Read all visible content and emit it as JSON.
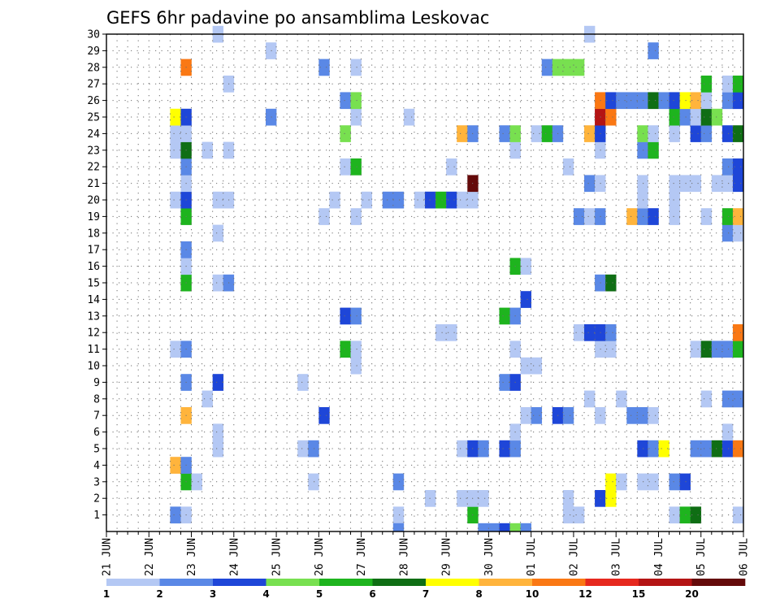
{
  "chart_data": {
    "type": "heatmap",
    "title": "GEFS 6hr padavine po ansamblima Leskovac",
    "xlabel": "",
    "ylabel": "",
    "x_ticks": [
      "21 JUN",
      "22 JUN",
      "23 JUN",
      "24 JUN",
      "25 JUN",
      "26 JUN",
      "27 JUN",
      "28 JUN",
      "29 JUN",
      "30 JUN",
      "01 JUL",
      "02 JUL",
      "03 JUL",
      "04 JUL",
      "05 JUL",
      "06 JUL"
    ],
    "y_ticks": [
      1,
      2,
      3,
      4,
      5,
      6,
      7,
      8,
      9,
      10,
      11,
      12,
      13,
      14,
      15,
      16,
      17,
      18,
      19,
      20,
      21,
      22,
      23,
      24,
      25,
      26,
      27,
      28,
      29,
      30
    ],
    "ylim": [
      0,
      30
    ],
    "x_unit": "6-hour steps from 21 JUN 00 UTC",
    "steps_shown": 60,
    "grid": true,
    "legend_position": "bottom",
    "legend": {
      "labels": [
        "1",
        "2",
        "3",
        "4",
        "5",
        "6",
        "7",
        "8",
        "10",
        "12",
        "15",
        "20"
      ],
      "colors": [
        "#b4c8f4",
        "#5a88e6",
        "#1e46d8",
        "#78e050",
        "#1eb41e",
        "#0f6e14",
        "#ffff00",
        "#ffb43c",
        "#fa7814",
        "#e6281e",
        "#b41414",
        "#640a0a"
      ]
    },
    "cells": [
      {
        "member": 1,
        "t": 6,
        "cat": 2
      },
      {
        "member": 1,
        "t": 7,
        "cat": 1
      },
      {
        "member": 1,
        "t": 27,
        "cat": 1
      },
      {
        "member": 1,
        "t": 34,
        "cat": 5
      },
      {
        "member": 1,
        "t": 43,
        "cat": 1
      },
      {
        "member": 1,
        "t": 44,
        "cat": 1
      },
      {
        "member": 1,
        "t": 53,
        "cat": 1
      },
      {
        "member": 1,
        "t": 54,
        "cat": 5
      },
      {
        "member": 1,
        "t": 55,
        "cat": 6
      },
      {
        "member": 1,
        "t": 59,
        "cat": 1
      },
      {
        "member": 2,
        "t": 30,
        "cat": 1
      },
      {
        "member": 2,
        "t": 33,
        "cat": 1
      },
      {
        "member": 2,
        "t": 34,
        "cat": 1
      },
      {
        "member": 2,
        "t": 35,
        "cat": 1
      },
      {
        "member": 2,
        "t": 43,
        "cat": 1
      },
      {
        "member": 2,
        "t": 46,
        "cat": 3
      },
      {
        "member": 2,
        "t": 47,
        "cat": 7
      },
      {
        "member": 3,
        "t": 7,
        "cat": 5
      },
      {
        "member": 3,
        "t": 8,
        "cat": 1
      },
      {
        "member": 3,
        "t": 19,
        "cat": 1
      },
      {
        "member": 3,
        "t": 27,
        "cat": 2
      },
      {
        "member": 3,
        "t": 47,
        "cat": 7
      },
      {
        "member": 3,
        "t": 48,
        "cat": 1
      },
      {
        "member": 3,
        "t": 50,
        "cat": 1
      },
      {
        "member": 3,
        "t": 51,
        "cat": 1
      },
      {
        "member": 3,
        "t": 53,
        "cat": 2
      },
      {
        "member": 3,
        "t": 54,
        "cat": 3
      },
      {
        "member": 4,
        "t": 6,
        "cat": 8
      },
      {
        "member": 4,
        "t": 7,
        "cat": 2
      },
      {
        "member": 5,
        "t": 10,
        "cat": 1
      },
      {
        "member": 5,
        "t": 18,
        "cat": 1
      },
      {
        "member": 5,
        "t": 19,
        "cat": 2
      },
      {
        "member": 5,
        "t": 33,
        "cat": 1
      },
      {
        "member": 5,
        "t": 34,
        "cat": 3
      },
      {
        "member": 5,
        "t": 35,
        "cat": 2
      },
      {
        "member": 5,
        "t": 37,
        "cat": 3
      },
      {
        "member": 5,
        "t": 38,
        "cat": 2
      },
      {
        "member": 5,
        "t": 50,
        "cat": 3
      },
      {
        "member": 5,
        "t": 51,
        "cat": 2
      },
      {
        "member": 5,
        "t": 52,
        "cat": 7
      },
      {
        "member": 5,
        "t": 55,
        "cat": 2
      },
      {
        "member": 5,
        "t": 56,
        "cat": 2
      },
      {
        "member": 5,
        "t": 57,
        "cat": 6
      },
      {
        "member": 5,
        "t": 58,
        "cat": 3
      },
      {
        "member": 5,
        "t": 59,
        "cat": 9
      },
      {
        "member": 6,
        "t": 10,
        "cat": 1
      },
      {
        "member": 6,
        "t": 38,
        "cat": 1
      },
      {
        "member": 6,
        "t": 58,
        "cat": 1
      },
      {
        "member": 7,
        "t": 7,
        "cat": 8
      },
      {
        "member": 7,
        "t": 20,
        "cat": 3
      },
      {
        "member": 7,
        "t": 39,
        "cat": 1
      },
      {
        "member": 7,
        "t": 40,
        "cat": 2
      },
      {
        "member": 7,
        "t": 42,
        "cat": 3
      },
      {
        "member": 7,
        "t": 43,
        "cat": 2
      },
      {
        "member": 7,
        "t": 46,
        "cat": 1
      },
      {
        "member": 7,
        "t": 49,
        "cat": 2
      },
      {
        "member": 7,
        "t": 50,
        "cat": 2
      },
      {
        "member": 7,
        "t": 51,
        "cat": 1
      },
      {
        "member": 8,
        "t": 9,
        "cat": 1
      },
      {
        "member": 8,
        "t": 45,
        "cat": 1
      },
      {
        "member": 8,
        "t": 48,
        "cat": 1
      },
      {
        "member": 8,
        "t": 56,
        "cat": 1
      },
      {
        "member": 8,
        "t": 58,
        "cat": 2
      },
      {
        "member": 8,
        "t": 59,
        "cat": 2
      },
      {
        "member": 9,
        "t": 7,
        "cat": 2
      },
      {
        "member": 9,
        "t": 10,
        "cat": 3
      },
      {
        "member": 9,
        "t": 18,
        "cat": 1
      },
      {
        "member": 9,
        "t": 37,
        "cat": 2
      },
      {
        "member": 9,
        "t": 38,
        "cat": 3
      },
      {
        "member": 10,
        "t": 23,
        "cat": 1
      },
      {
        "member": 10,
        "t": 39,
        "cat": 1
      },
      {
        "member": 10,
        "t": 40,
        "cat": 1
      },
      {
        "member": 11,
        "t": 6,
        "cat": 1
      },
      {
        "member": 11,
        "t": 7,
        "cat": 2
      },
      {
        "member": 11,
        "t": 22,
        "cat": 5
      },
      {
        "member": 11,
        "t": 23,
        "cat": 1
      },
      {
        "member": 11,
        "t": 38,
        "cat": 1
      },
      {
        "member": 11,
        "t": 46,
        "cat": 1
      },
      {
        "member": 11,
        "t": 47,
        "cat": 1
      },
      {
        "member": 11,
        "t": 55,
        "cat": 1
      },
      {
        "member": 11,
        "t": 56,
        "cat": 6
      },
      {
        "member": 11,
        "t": 57,
        "cat": 2
      },
      {
        "member": 11,
        "t": 58,
        "cat": 2
      },
      {
        "member": 11,
        "t": 59,
        "cat": 5
      },
      {
        "member": 12,
        "t": 31,
        "cat": 1
      },
      {
        "member": 12,
        "t": 32,
        "cat": 1
      },
      {
        "member": 12,
        "t": 44,
        "cat": 1
      },
      {
        "member": 12,
        "t": 45,
        "cat": 3
      },
      {
        "member": 12,
        "t": 46,
        "cat": 3
      },
      {
        "member": 12,
        "t": 47,
        "cat": 2
      },
      {
        "member": 12,
        "t": 59,
        "cat": 9
      },
      {
        "member": 13,
        "t": 22,
        "cat": 3
      },
      {
        "member": 13,
        "t": 23,
        "cat": 2
      },
      {
        "member": 13,
        "t": 37,
        "cat": 5
      },
      {
        "member": 13,
        "t": 38,
        "cat": 2
      },
      {
        "member": 14,
        "t": 39,
        "cat": 3
      },
      {
        "member": 15,
        "t": 7,
        "cat": 5
      },
      {
        "member": 15,
        "t": 10,
        "cat": 1
      },
      {
        "member": 15,
        "t": 11,
        "cat": 2
      },
      {
        "member": 15,
        "t": 46,
        "cat": 2
      },
      {
        "member": 15,
        "t": 47,
        "cat": 6
      },
      {
        "member": 16,
        "t": 7,
        "cat": 1
      },
      {
        "member": 16,
        "t": 38,
        "cat": 5
      },
      {
        "member": 16,
        "t": 39,
        "cat": 1
      },
      {
        "member": 17,
        "t": 7,
        "cat": 2
      },
      {
        "member": 18,
        "t": 10,
        "cat": 1
      },
      {
        "member": 18,
        "t": 58,
        "cat": 2
      },
      {
        "member": 18,
        "t": 59,
        "cat": 1
      },
      {
        "member": 19,
        "t": 7,
        "cat": 5
      },
      {
        "member": 19,
        "t": 20,
        "cat": 1
      },
      {
        "member": 19,
        "t": 23,
        "cat": 1
      },
      {
        "member": 19,
        "t": 44,
        "cat": 2
      },
      {
        "member": 19,
        "t": 45,
        "cat": 1
      },
      {
        "member": 19,
        "t": 46,
        "cat": 2
      },
      {
        "member": 19,
        "t": 49,
        "cat": 8
      },
      {
        "member": 19,
        "t": 50,
        "cat": 2
      },
      {
        "member": 19,
        "t": 51,
        "cat": 3
      },
      {
        "member": 19,
        "t": 53,
        "cat": 1
      },
      {
        "member": 19,
        "t": 56,
        "cat": 1
      },
      {
        "member": 19,
        "t": 58,
        "cat": 5
      },
      {
        "member": 19,
        "t": 59,
        "cat": 8
      },
      {
        "member": 20,
        "t": 6,
        "cat": 1
      },
      {
        "member": 20,
        "t": 7,
        "cat": 3
      },
      {
        "member": 20,
        "t": 10,
        "cat": 1
      },
      {
        "member": 20,
        "t": 11,
        "cat": 1
      },
      {
        "member": 20,
        "t": 21,
        "cat": 1
      },
      {
        "member": 20,
        "t": 24,
        "cat": 1
      },
      {
        "member": 20,
        "t": 26,
        "cat": 2
      },
      {
        "member": 20,
        "t": 27,
        "cat": 2
      },
      {
        "member": 20,
        "t": 29,
        "cat": 1
      },
      {
        "member": 20,
        "t": 30,
        "cat": 3
      },
      {
        "member": 20,
        "t": 31,
        "cat": 5
      },
      {
        "member": 20,
        "t": 32,
        "cat": 3
      },
      {
        "member": 20,
        "t": 33,
        "cat": 1
      },
      {
        "member": 20,
        "t": 34,
        "cat": 1
      },
      {
        "member": 20,
        "t": 50,
        "cat": 1
      },
      {
        "member": 20,
        "t": 53,
        "cat": 1
      },
      {
        "member": 21,
        "t": 7,
        "cat": 1
      },
      {
        "member": 21,
        "t": 34,
        "cat": 12
      },
      {
        "member": 21,
        "t": 45,
        "cat": 2
      },
      {
        "member": 21,
        "t": 46,
        "cat": 1
      },
      {
        "member": 21,
        "t": 50,
        "cat": 1
      },
      {
        "member": 21,
        "t": 53,
        "cat": 1
      },
      {
        "member": 21,
        "t": 54,
        "cat": 1
      },
      {
        "member": 21,
        "t": 55,
        "cat": 1
      },
      {
        "member": 21,
        "t": 57,
        "cat": 1
      },
      {
        "member": 21,
        "t": 58,
        "cat": 1
      },
      {
        "member": 21,
        "t": 59,
        "cat": 3
      },
      {
        "member": 22,
        "t": 7,
        "cat": 2
      },
      {
        "member": 22,
        "t": 22,
        "cat": 1
      },
      {
        "member": 22,
        "t": 23,
        "cat": 5
      },
      {
        "member": 22,
        "t": 32,
        "cat": 1
      },
      {
        "member": 22,
        "t": 43,
        "cat": 1
      },
      {
        "member": 22,
        "t": 58,
        "cat": 2
      },
      {
        "member": 22,
        "t": 59,
        "cat": 3
      },
      {
        "member": 23,
        "t": 6,
        "cat": 1
      },
      {
        "member": 23,
        "t": 7,
        "cat": 6
      },
      {
        "member": 23,
        "t": 9,
        "cat": 1
      },
      {
        "member": 23,
        "t": 11,
        "cat": 1
      },
      {
        "member": 23,
        "t": 38,
        "cat": 1
      },
      {
        "member": 23,
        "t": 46,
        "cat": 1
      },
      {
        "member": 23,
        "t": 50,
        "cat": 2
      },
      {
        "member": 23,
        "t": 51,
        "cat": 5
      },
      {
        "member": 24,
        "t": 6,
        "cat": 1
      },
      {
        "member": 24,
        "t": 7,
        "cat": 1
      },
      {
        "member": 24,
        "t": 22,
        "cat": 4
      },
      {
        "member": 24,
        "t": 33,
        "cat": 8
      },
      {
        "member": 24,
        "t": 34,
        "cat": 2
      },
      {
        "member": 24,
        "t": 37,
        "cat": 2
      },
      {
        "member": 24,
        "t": 38,
        "cat": 4
      },
      {
        "member": 24,
        "t": 40,
        "cat": 1
      },
      {
        "member": 24,
        "t": 41,
        "cat": 5
      },
      {
        "member": 24,
        "t": 42,
        "cat": 2
      },
      {
        "member": 24,
        "t": 45,
        "cat": 8
      },
      {
        "member": 24,
        "t": 46,
        "cat": 3
      },
      {
        "member": 24,
        "t": 50,
        "cat": 4
      },
      {
        "member": 24,
        "t": 51,
        "cat": 1
      },
      {
        "member": 24,
        "t": 53,
        "cat": 1
      },
      {
        "member": 24,
        "t": 55,
        "cat": 3
      },
      {
        "member": 24,
        "t": 56,
        "cat": 2
      },
      {
        "member": 24,
        "t": 58,
        "cat": 3
      },
      {
        "member": 24,
        "t": 59,
        "cat": 6
      },
      {
        "member": 25,
        "t": 6,
        "cat": 7
      },
      {
        "member": 25,
        "t": 7,
        "cat": 3
      },
      {
        "member": 25,
        "t": 15,
        "cat": 2
      },
      {
        "member": 25,
        "t": 23,
        "cat": 1
      },
      {
        "member": 25,
        "t": 28,
        "cat": 1
      },
      {
        "member": 25,
        "t": 46,
        "cat": 11
      },
      {
        "member": 25,
        "t": 47,
        "cat": 9
      },
      {
        "member": 25,
        "t": 53,
        "cat": 5
      },
      {
        "member": 25,
        "t": 54,
        "cat": 2
      },
      {
        "member": 25,
        "t": 55,
        "cat": 1
      },
      {
        "member": 25,
        "t": 56,
        "cat": 6
      },
      {
        "member": 25,
        "t": 57,
        "cat": 4
      },
      {
        "member": 26,
        "t": 22,
        "cat": 2
      },
      {
        "member": 26,
        "t": 23,
        "cat": 4
      },
      {
        "member": 26,
        "t": 46,
        "cat": 9
      },
      {
        "member": 26,
        "t": 47,
        "cat": 3
      },
      {
        "member": 26,
        "t": 48,
        "cat": 2
      },
      {
        "member": 26,
        "t": 49,
        "cat": 2
      },
      {
        "member": 26,
        "t": 50,
        "cat": 2
      },
      {
        "member": 26,
        "t": 51,
        "cat": 6
      },
      {
        "member": 26,
        "t": 52,
        "cat": 2
      },
      {
        "member": 26,
        "t": 53,
        "cat": 3
      },
      {
        "member": 26,
        "t": 54,
        "cat": 7
      },
      {
        "member": 26,
        "t": 55,
        "cat": 8
      },
      {
        "member": 26,
        "t": 56,
        "cat": 1
      },
      {
        "member": 26,
        "t": 58,
        "cat": 2
      },
      {
        "member": 26,
        "t": 59,
        "cat": 3
      },
      {
        "member": 27,
        "t": 11,
        "cat": 1
      },
      {
        "member": 27,
        "t": 56,
        "cat": 5
      },
      {
        "member": 27,
        "t": 58,
        "cat": 1
      },
      {
        "member": 27,
        "t": 59,
        "cat": 5
      },
      {
        "member": 28,
        "t": 7,
        "cat": 9
      },
      {
        "member": 28,
        "t": 20,
        "cat": 2
      },
      {
        "member": 28,
        "t": 23,
        "cat": 1
      },
      {
        "member": 28,
        "t": 41,
        "cat": 2
      },
      {
        "member": 28,
        "t": 42,
        "cat": 4
      },
      {
        "member": 28,
        "t": 43,
        "cat": 4
      },
      {
        "member": 28,
        "t": 44,
        "cat": 4
      },
      {
        "member": 29,
        "t": 15,
        "cat": 1
      },
      {
        "member": 29,
        "t": 51,
        "cat": 2
      },
      {
        "member": 30,
        "t": 10,
        "cat": 1
      },
      {
        "member": 30,
        "t": 45,
        "cat": 1
      }
    ],
    "row0_cells": [
      {
        "t": 27,
        "cat": 2
      },
      {
        "t": 35,
        "cat": 2
      },
      {
        "t": 36,
        "cat": 2
      },
      {
        "t": 37,
        "cat": 3
      },
      {
        "t": 38,
        "cat": 4
      },
      {
        "t": 39,
        "cat": 2
      }
    ]
  }
}
